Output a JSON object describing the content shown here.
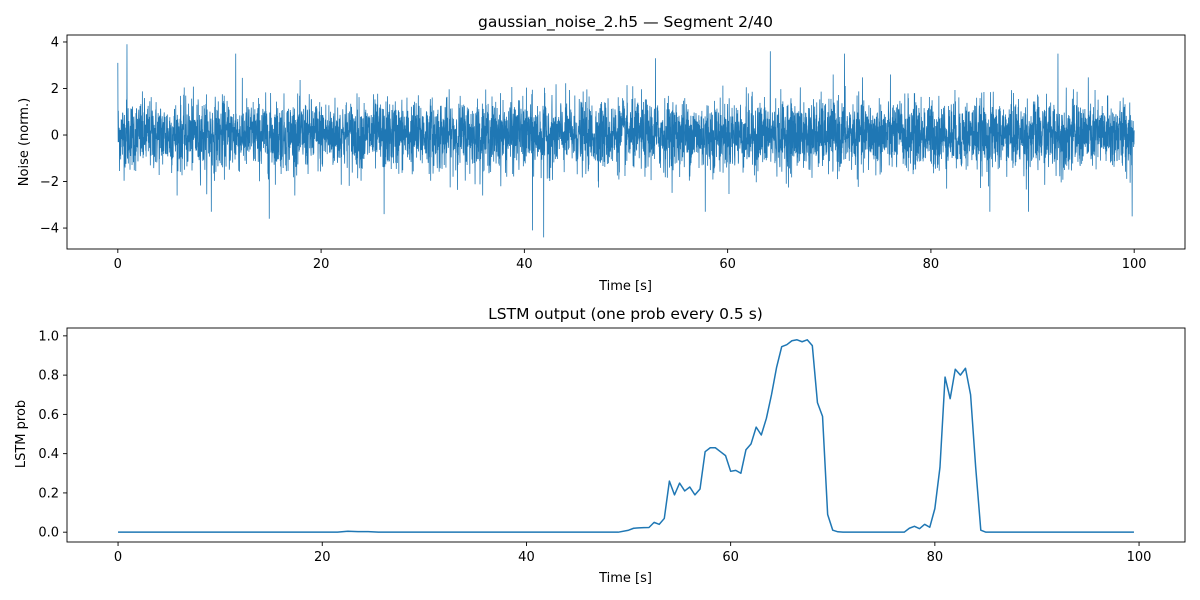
{
  "colors": {
    "series": "#1f77b4",
    "axis": "#000000",
    "background": "#ffffff"
  },
  "chart_data": [
    {
      "type": "line",
      "title": "gaussian_noise_2.h5 — Segment 2/40",
      "xlabel": "Time [s]",
      "ylabel": "Noise (norm.)",
      "xlim": [
        -5,
        105
      ],
      "ylim": [
        -4.9,
        4.3
      ],
      "xticks": [
        0,
        20,
        40,
        60,
        80,
        100
      ],
      "yticks": [
        -4,
        -2,
        0,
        2,
        4
      ],
      "grid": false,
      "series": [
        {
          "style": "dense gaussian noise, approx N(0,1), 0–100 s",
          "x_range": [
            0,
            100
          ],
          "peaks": [
            {
              "x": 0.9,
              "y": 3.9
            },
            {
              "x": 11.6,
              "y": 3.5
            },
            {
              "x": 41.9,
              "y": -4.4
            },
            {
              "x": 40.8,
              "y": -4.1
            },
            {
              "x": 14.9,
              "y": -3.6
            },
            {
              "x": 99.8,
              "y": -3.5
            },
            {
              "x": 0.0,
              "y": 3.1
            },
            {
              "x": 52.9,
              "y": 3.3
            },
            {
              "x": 64.2,
              "y": 3.6
            },
            {
              "x": 71.5,
              "y": 3.5
            },
            {
              "x": 92.5,
              "y": 3.5
            },
            {
              "x": 9.2,
              "y": -3.3
            },
            {
              "x": 26.2,
              "y": -3.4
            },
            {
              "x": 57.8,
              "y": -3.3
            },
            {
              "x": 85.8,
              "y": -3.3
            },
            {
              "x": 89.6,
              "y": -3.3
            }
          ]
        }
      ]
    },
    {
      "type": "line",
      "title": "LSTM output (one prob every 0.5 s)",
      "xlabel": "Time [s]",
      "ylabel": "LSTM prob",
      "xlim": [
        -5,
        104.5
      ],
      "ylim": [
        -0.05,
        1.04
      ],
      "xticks": [
        0,
        20,
        40,
        60,
        80,
        100
      ],
      "yticks": [
        0.0,
        0.2,
        0.4,
        0.6,
        0.8,
        1.0
      ],
      "grid": false,
      "series": [
        {
          "points": [
            [
              0,
              0
            ],
            [
              21.5,
              0
            ],
            [
              22.5,
              0.005
            ],
            [
              23.5,
              0.003
            ],
            [
              24.5,
              0.003
            ],
            [
              25.5,
              0
            ],
            [
              49,
              0
            ],
            [
              50,
              0.01
            ],
            [
              50.5,
              0.02
            ],
            [
              51,
              0.022
            ],
            [
              51.5,
              0.023
            ],
            [
              52,
              0.024
            ],
            [
              52.5,
              0.05
            ],
            [
              53,
              0.04
            ],
            [
              53.5,
              0.07
            ],
            [
              54,
              0.26
            ],
            [
              54.5,
              0.19
            ],
            [
              55,
              0.25
            ],
            [
              55.5,
              0.21
            ],
            [
              56,
              0.23
            ],
            [
              56.5,
              0.19
            ],
            [
              57,
              0.22
            ],
            [
              57.5,
              0.41
            ],
            [
              58,
              0.43
            ],
            [
              58.5,
              0.43
            ],
            [
              59,
              0.41
            ],
            [
              59.5,
              0.39
            ],
            [
              60,
              0.31
            ],
            [
              60.5,
              0.315
            ],
            [
              61,
              0.3
            ],
            [
              61.5,
              0.42
            ],
            [
              62,
              0.45
            ],
            [
              62.5,
              0.535
            ],
            [
              63,
              0.495
            ],
            [
              63.5,
              0.58
            ],
            [
              64,
              0.7
            ],
            [
              64.5,
              0.84
            ],
            [
              65,
              0.945
            ],
            [
              65.5,
              0.955
            ],
            [
              66,
              0.975
            ],
            [
              66.5,
              0.98
            ],
            [
              67,
              0.97
            ],
            [
              67.5,
              0.98
            ],
            [
              68,
              0.95
            ],
            [
              68.5,
              0.66
            ],
            [
              69,
              0.59
            ],
            [
              69.5,
              0.09
            ],
            [
              70,
              0.01
            ],
            [
              70.5,
              0.002
            ],
            [
              71,
              0
            ],
            [
              77,
              0
            ],
            [
              77.5,
              0.02
            ],
            [
              78,
              0.03
            ],
            [
              78.5,
              0.018
            ],
            [
              79,
              0.04
            ],
            [
              79.5,
              0.025
            ],
            [
              80,
              0.12
            ],
            [
              80.5,
              0.33
            ],
            [
              81,
              0.79
            ],
            [
              81.5,
              0.68
            ],
            [
              82,
              0.83
            ],
            [
              82.5,
              0.8
            ],
            [
              83,
              0.835
            ],
            [
              83.5,
              0.7
            ],
            [
              84,
              0.33
            ],
            [
              84.5,
              0.01
            ],
            [
              85,
              0
            ],
            [
              99.5,
              0
            ]
          ]
        }
      ]
    }
  ]
}
